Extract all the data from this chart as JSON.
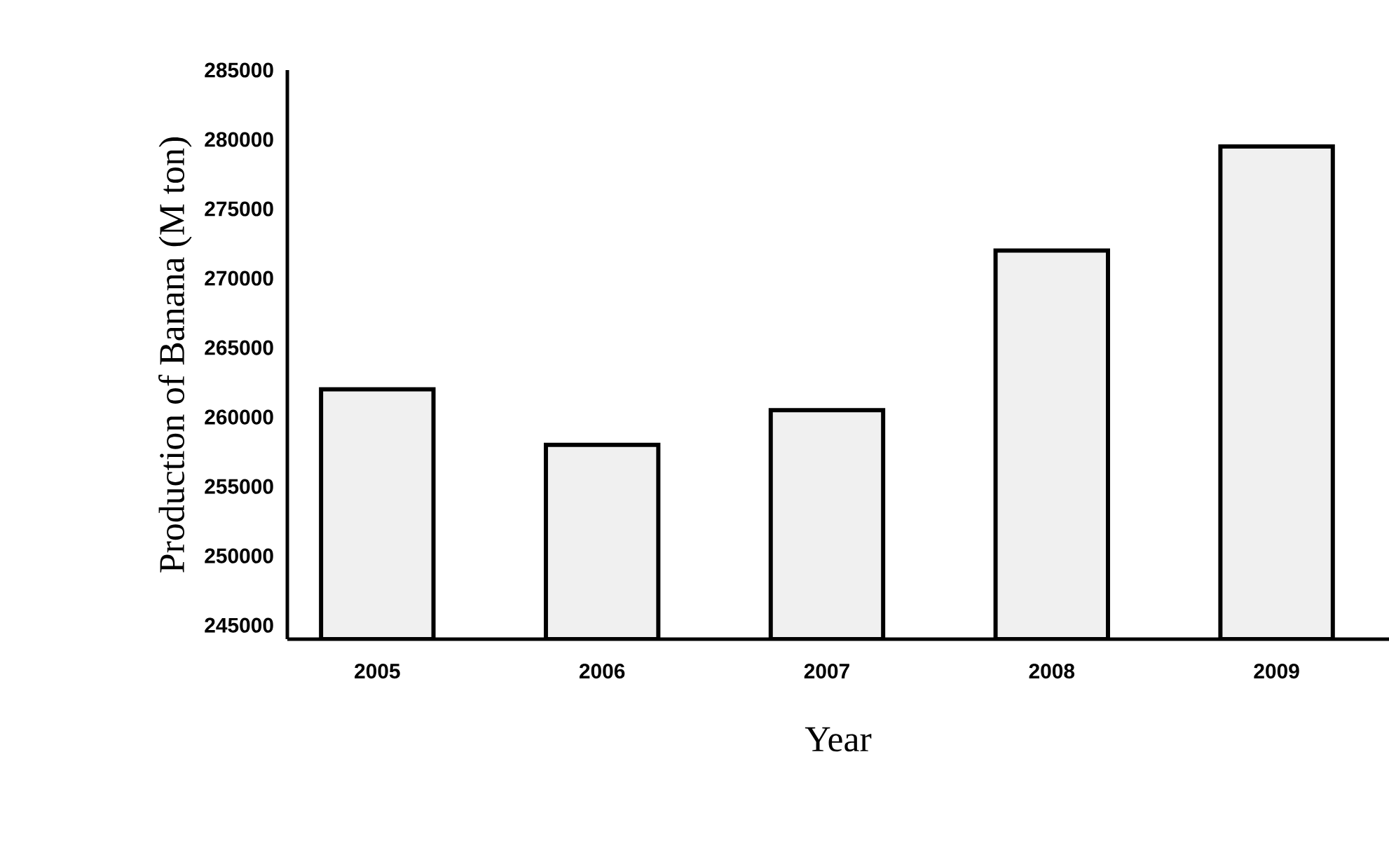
{
  "chart_data": {
    "type": "bar",
    "xlabel": "Year",
    "ylabel": "Production of  Banana (M ton)",
    "categories": [
      "2005",
      "2006",
      "2007",
      "2008",
      "2009"
    ],
    "values": [
      262000,
      258000,
      260500,
      272000,
      279500
    ],
    "color": "#f0f0f0",
    "ylim": [
      244000,
      285000
    ],
    "yticks": [
      245000,
      250000,
      255000,
      260000,
      265000,
      270000,
      275000,
      280000,
      285000
    ]
  }
}
